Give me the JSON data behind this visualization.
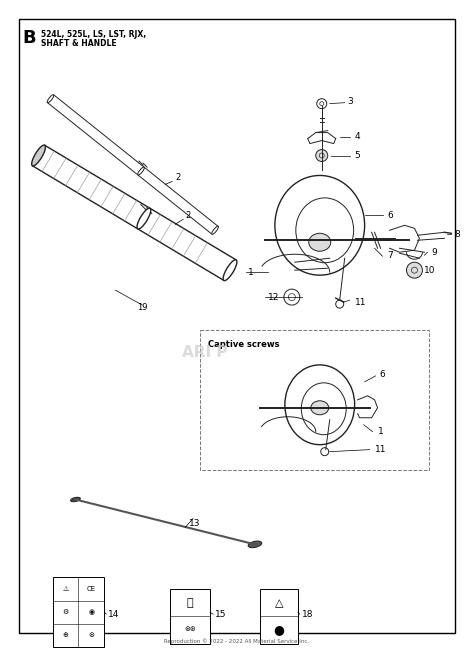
{
  "title": "B",
  "subtitle1": "524L, 525L, LS, LST, RJX,",
  "subtitle2": "SHAFT & HANDLE",
  "bg_color": "#ffffff",
  "border_color": "#000000",
  "part_color": "#222222",
  "watermark": "ARI P",
  "captive_label": "Captive screws",
  "footer": "Reproduction © 2022 - 2022 All Material Service Inc.",
  "fig_w": 4.74,
  "fig_h": 6.64
}
